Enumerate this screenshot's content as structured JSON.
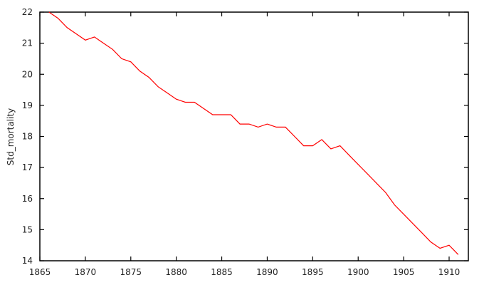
{
  "chart_data": {
    "type": "line",
    "title": "",
    "xlabel": "",
    "ylabel": "Std_mortality",
    "xlim": [
      1865,
      1912
    ],
    "ylim": [
      14,
      22
    ],
    "grid": false,
    "legend": null,
    "xticks": [
      1865,
      1870,
      1875,
      1880,
      1885,
      1890,
      1895,
      1900,
      1905,
      1910
    ],
    "yticks": [
      14,
      15,
      16,
      17,
      18,
      19,
      20,
      21,
      22
    ],
    "series": [
      {
        "name": "Std_mortality",
        "color": "#ff0000",
        "x": [
          1866,
          1867,
          1868,
          1869,
          1870,
          1871,
          1872,
          1873,
          1874,
          1875,
          1876,
          1877,
          1878,
          1879,
          1880,
          1881,
          1882,
          1883,
          1884,
          1885,
          1886,
          1887,
          1888,
          1889,
          1890,
          1891,
          1892,
          1893,
          1894,
          1895,
          1896,
          1897,
          1898,
          1899,
          1900,
          1901,
          1902,
          1903,
          1904,
          1905,
          1906,
          1907,
          1908,
          1909,
          1910,
          1911
        ],
        "values": [
          22.0,
          21.8,
          21.5,
          21.3,
          21.1,
          21.2,
          21.0,
          20.8,
          20.5,
          20.4,
          20.1,
          19.9,
          19.6,
          19.4,
          19.2,
          19.1,
          19.1,
          18.9,
          18.7,
          18.7,
          18.7,
          18.4,
          18.4,
          18.3,
          18.4,
          18.3,
          18.3,
          18.0,
          17.7,
          17.7,
          17.9,
          17.6,
          17.7,
          17.4,
          17.1,
          16.8,
          16.5,
          16.2,
          15.8,
          15.5,
          15.2,
          14.9,
          14.6,
          14.4,
          14.5,
          14.2
        ]
      }
    ]
  }
}
